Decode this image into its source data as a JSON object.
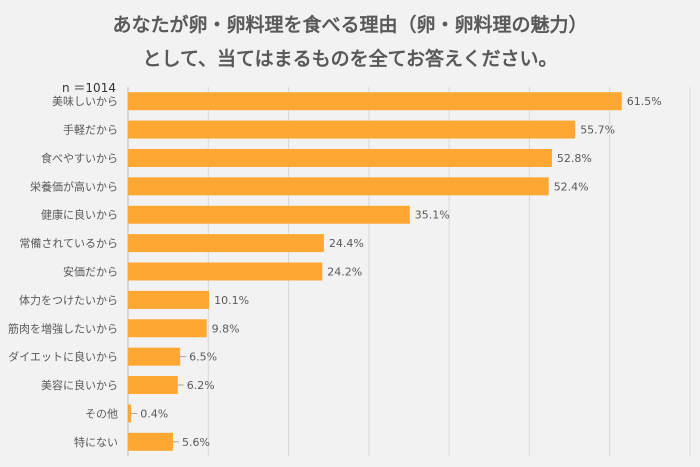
{
  "title": [
    "あなたが卵・卵料理を食べる理由（卵・卵料理の魅力）",
    "として、当てはまるものを全てお答えください。"
  ],
  "chart_data": {
    "type": "bar",
    "orientation": "horizontal",
    "title": "あなたが卵・卵料理を食べる理由（卵・卵料理の魅力）として、当てはまるものを全てお答えください。",
    "annotation": "n ＝1014",
    "categories": [
      "美味しいから",
      "手軽だから",
      "食べやすいから",
      "栄養価が高いから",
      "健康に良いから",
      "常備されているから",
      "安価だから",
      "体力をつけたいから",
      "筋肉を増強したいから",
      "ダイエットに良いから",
      "美容に良いから",
      "その他",
      "特にない"
    ],
    "values": [
      61.5,
      55.7,
      52.8,
      52.4,
      35.1,
      24.4,
      24.2,
      10.1,
      9.8,
      6.5,
      6.2,
      0.4,
      5.6
    ],
    "value_labels": [
      "61.5%",
      "55.7%",
      "52.8%",
      "52.4%",
      "35.1%",
      "24.4%",
      "24.2%",
      "10.1%",
      "9.8%",
      "6.5%",
      "6.2%",
      "0.4%",
      "5.6%"
    ],
    "xlim": [
      0,
      70
    ],
    "grid": true,
    "colors": {
      "bar": "#ffa733",
      "grid": "#d9d9d9",
      "text": "#595959"
    }
  }
}
